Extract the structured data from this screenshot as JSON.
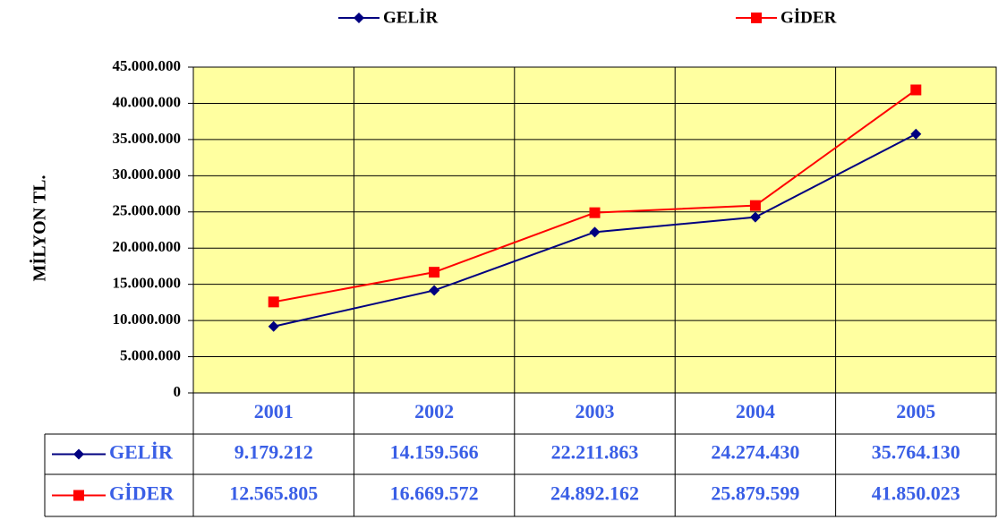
{
  "chart_data": {
    "type": "line",
    "y_label": "MİLYON TL.",
    "categories": [
      "2001",
      "2002",
      "2003",
      "2004",
      "2005"
    ],
    "series": [
      {
        "name": "GELİR",
        "color": "#000080",
        "marker": "diamond",
        "values": [
          9179212,
          14159566,
          22211863,
          24274430,
          35764130
        ],
        "value_labels": [
          "9.179.212",
          "14.159.566",
          "22.211.863",
          "24.274.430",
          "35.764.130"
        ]
      },
      {
        "name": "GİDER",
        "color": "#ff0000",
        "marker": "square",
        "values": [
          12565805,
          16669572,
          24892162,
          25879599,
          41850023
        ],
        "value_labels": [
          "12.565.805",
          "16.669.572",
          "24.892.162",
          "25.879.599",
          "41.850.023"
        ]
      }
    ],
    "ylim": [
      0,
      45000000
    ],
    "yticks": [
      0,
      {
        "value": 5000000,
        "label": "5.000.000"
      },
      {
        "value": 10000000,
        "label": "10.000.000"
      },
      {
        "value": 15000000,
        "label": "15.000.000"
      },
      {
        "value": 20000000,
        "label": "20.000.000"
      },
      {
        "value": 25000000,
        "label": "25.000.000"
      },
      {
        "value": 30000000,
        "label": "30.000.000"
      },
      {
        "value": 35000000,
        "label": "35.000.000"
      },
      {
        "value": 40000000,
        "label": "40.000.000"
      },
      {
        "value": 45000000,
        "label": "45.000.000"
      }
    ],
    "grid": true,
    "legend": "top",
    "plot_background": "#ffffa0"
  }
}
